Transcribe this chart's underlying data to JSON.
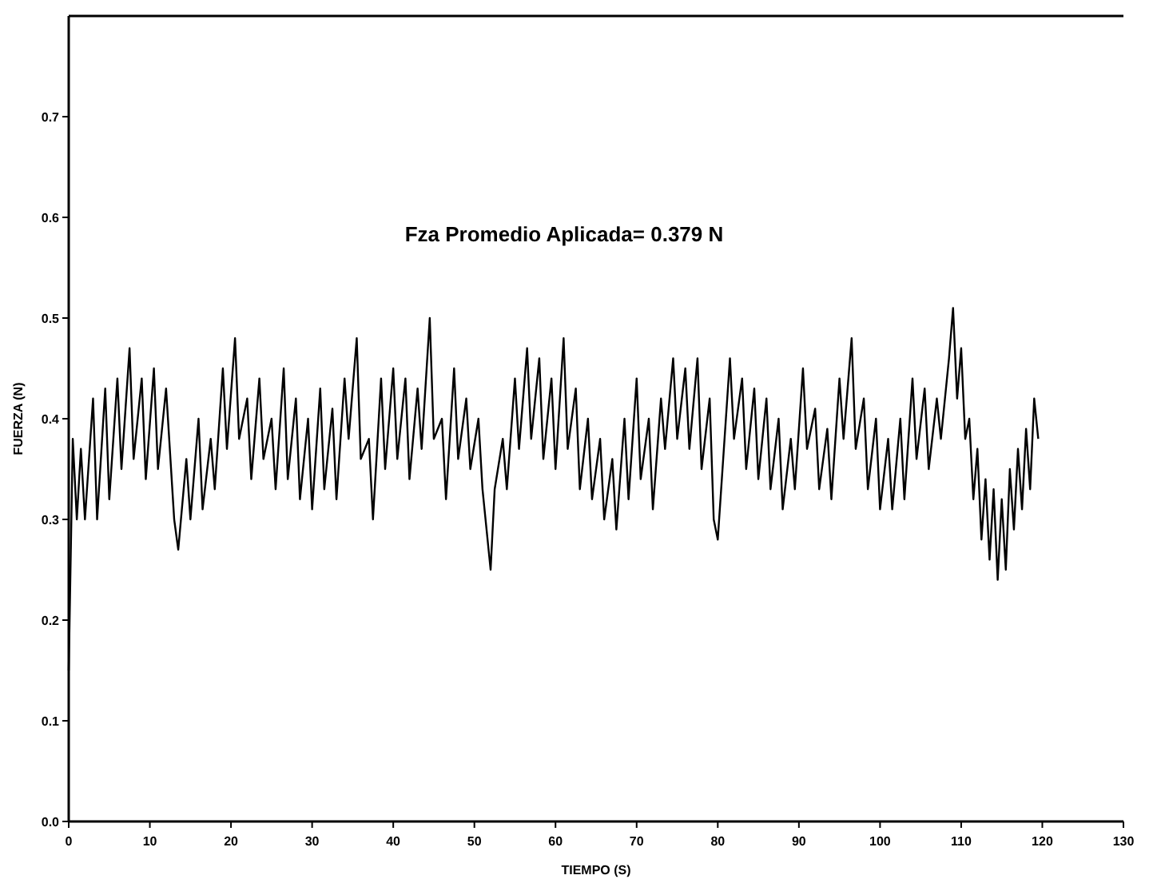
{
  "chart_data": {
    "type": "line",
    "xlabel": "TIEMPO (S)",
    "ylabel": "FUERZA (N)",
    "annotations": [
      "Fza Promedio Aplicada= 0.379 N"
    ],
    "xlim": [
      0,
      130
    ],
    "xticks": [
      0,
      10,
      20,
      30,
      40,
      50,
      60,
      70,
      80,
      90,
      100,
      110,
      120,
      130
    ],
    "ylim": [
      0,
      0.8
    ],
    "yticks": [
      {
        "value": 0,
        "label": "0.0"
      },
      0.1,
      0.2,
      0.3,
      0.4,
      0.5,
      0.6,
      0.7
    ],
    "grid": false,
    "marker": "none",
    "line_style": "solid",
    "x": [
      0,
      0.5,
      1,
      1.5,
      2,
      3,
      3.5,
      4.5,
      5,
      6,
      6.5,
      7.5,
      8,
      9,
      9.5,
      10.5,
      11,
      12,
      13,
      13.5,
      14.5,
      15,
      16,
      16.5,
      17.5,
      18,
      19,
      19.5,
      20.5,
      21,
      22,
      22.5,
      23.5,
      24,
      25,
      25.5,
      26.5,
      27,
      28,
      28.5,
      29.5,
      30,
      31,
      31.5,
      32.5,
      33,
      34,
      34.5,
      35.5,
      36,
      37,
      37.5,
      38.5,
      39,
      40,
      40.5,
      41.5,
      42,
      43,
      43.5,
      44.5,
      45,
      46,
      46.5,
      47.5,
      48,
      49,
      49.5,
      50.5,
      51,
      52,
      52.5,
      53.5,
      54,
      55,
      55.5,
      56.5,
      57,
      58,
      58.5,
      59.5,
      60,
      61,
      61.5,
      62.5,
      63,
      64,
      64.5,
      65.5,
      66,
      67,
      67.5,
      68.5,
      69,
      70,
      70.5,
      71.5,
      72,
      73,
      73.5,
      74.5,
      75,
      76,
      76.5,
      77.5,
      78,
      79,
      79.5,
      80,
      81,
      81.5,
      82,
      83,
      83.5,
      84.5,
      85,
      86,
      86.5,
      87.5,
      88,
      89,
      89.5,
      90.5,
      91,
      92,
      92.5,
      93.5,
      94,
      95,
      95.5,
      96.5,
      97,
      98,
      98.5,
      99.5,
      100,
      101,
      101.5,
      102.5,
      103,
      104,
      104.5,
      105.5,
      106,
      107,
      107.5,
      108.5,
      109,
      109.5,
      110,
      110.5,
      111,
      111.5,
      112,
      112.5,
      113,
      113.5,
      114,
      114.5,
      115,
      115.5,
      116,
      116.5,
      117,
      117.5,
      118,
      118.5,
      119,
      119.5
    ],
    "series": [
      {
        "color": "#000000",
        "values": [
          0.15,
          0.38,
          0.3,
          0.37,
          0.3,
          0.42,
          0.3,
          0.43,
          0.32,
          0.44,
          0.35,
          0.47,
          0.36,
          0.44,
          0.34,
          0.45,
          0.35,
          0.43,
          0.3,
          0.27,
          0.36,
          0.3,
          0.4,
          0.31,
          0.38,
          0.33,
          0.45,
          0.37,
          0.48,
          0.38,
          0.42,
          0.34,
          0.44,
          0.36,
          0.4,
          0.33,
          0.45,
          0.34,
          0.42,
          0.32,
          0.4,
          0.31,
          0.43,
          0.33,
          0.41,
          0.32,
          0.44,
          0.38,
          0.48,
          0.36,
          0.38,
          0.3,
          0.44,
          0.35,
          0.45,
          0.36,
          0.44,
          0.34,
          0.43,
          0.37,
          0.5,
          0.38,
          0.4,
          0.32,
          0.45,
          0.36,
          0.42,
          0.35,
          0.4,
          0.33,
          0.25,
          0.33,
          0.38,
          0.33,
          0.44,
          0.37,
          0.47,
          0.38,
          0.46,
          0.36,
          0.44,
          0.35,
          0.48,
          0.37,
          0.43,
          0.33,
          0.4,
          0.32,
          0.38,
          0.3,
          0.36,
          0.29,
          0.4,
          0.32,
          0.44,
          0.34,
          0.4,
          0.31,
          0.42,
          0.37,
          0.46,
          0.38,
          0.45,
          0.37,
          0.46,
          0.35,
          0.42,
          0.3,
          0.28,
          0.4,
          0.46,
          0.38,
          0.44,
          0.35,
          0.43,
          0.34,
          0.42,
          0.33,
          0.4,
          0.31,
          0.38,
          0.33,
          0.45,
          0.37,
          0.41,
          0.33,
          0.39,
          0.32,
          0.44,
          0.38,
          0.48,
          0.37,
          0.42,
          0.33,
          0.4,
          0.31,
          0.38,
          0.31,
          0.4,
          0.32,
          0.44,
          0.36,
          0.43,
          0.35,
          0.42,
          0.38,
          0.46,
          0.51,
          0.42,
          0.47,
          0.38,
          0.4,
          0.32,
          0.37,
          0.28,
          0.34,
          0.26,
          0.33,
          0.24,
          0.32,
          0.25,
          0.35,
          0.29,
          0.37,
          0.31,
          0.39,
          0.33,
          0.42,
          0.38
        ]
      }
    ]
  }
}
